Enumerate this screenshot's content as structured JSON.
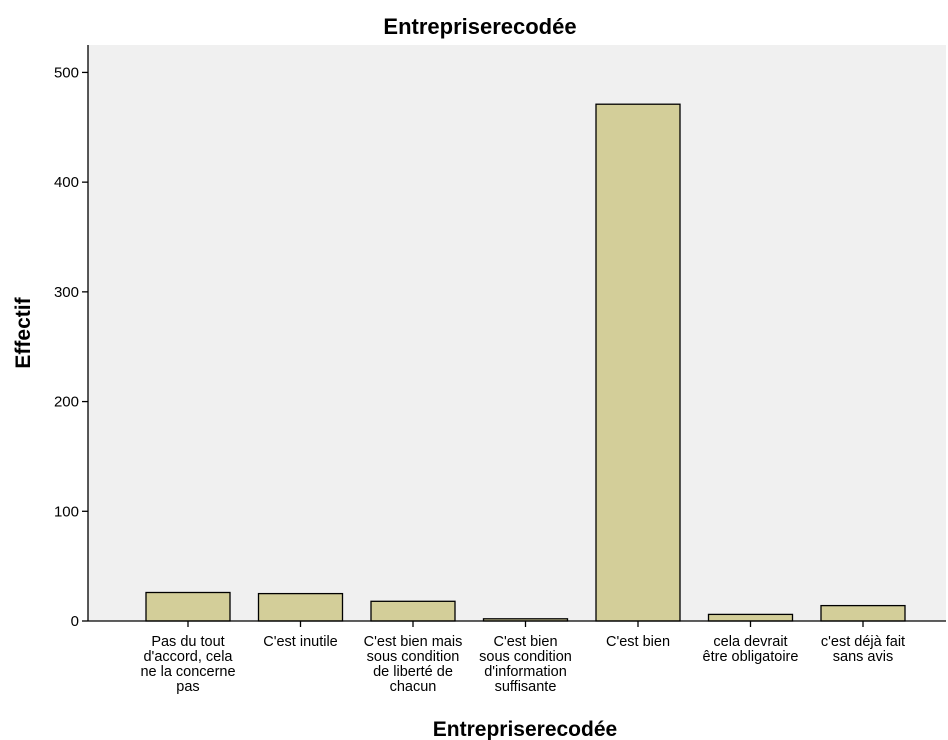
{
  "chart_data": {
    "type": "bar",
    "title": "Entrepriserecodée",
    "xlabel": "Entrepriserecodée",
    "ylabel": "Effectif",
    "ylim": [
      0,
      525
    ],
    "yticks": [
      0,
      100,
      200,
      300,
      400,
      500
    ],
    "grid": false,
    "categories": [
      [
        "Pas du tout",
        "d'accord, cela",
        "ne la concerne",
        "pas"
      ],
      [
        "C'est inutile"
      ],
      [
        "C'est bien mais",
        "sous condition",
        "de liberté de",
        "chacun"
      ],
      [
        "C'est bien",
        "sous condition",
        "d'information",
        "suffisante"
      ],
      [
        "C'est bien"
      ],
      [
        "cela devrait",
        "être obligatoire"
      ],
      [
        "c'est déjà fait",
        "sans avis"
      ]
    ],
    "values": [
      26,
      25,
      18,
      2,
      471,
      6,
      14
    ],
    "colors": {
      "bar_fill": "#d3ce99",
      "plot_background": "#f0f0f0",
      "axis": "#000000"
    }
  }
}
